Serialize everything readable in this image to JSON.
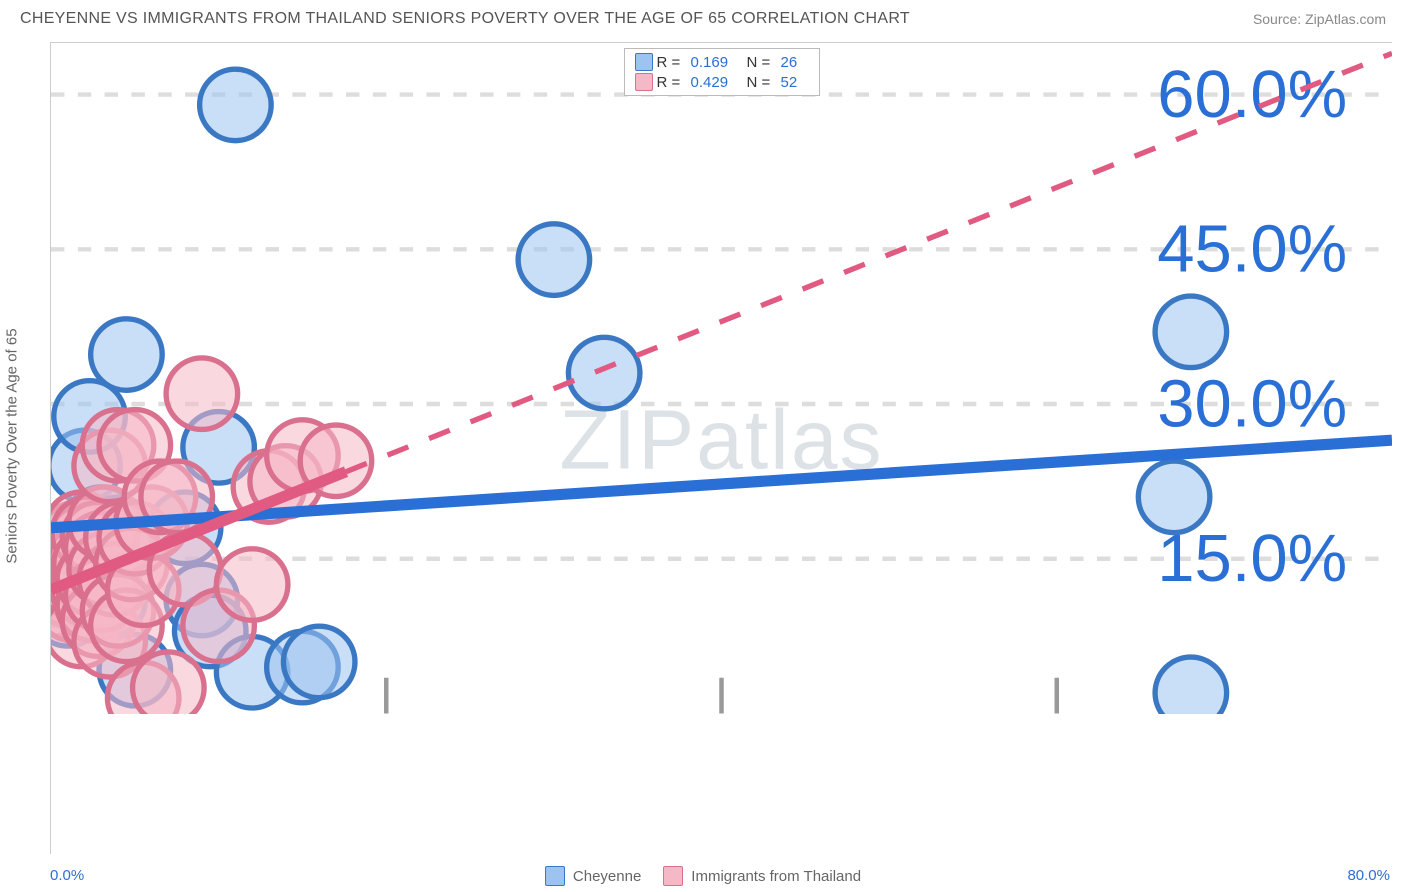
{
  "title": "CHEYENNE VS IMMIGRANTS FROM THAILAND SENIORS POVERTY OVER THE AGE OF 65 CORRELATION CHART",
  "source": "Source: ZipAtlas.com",
  "ylabel": "Seniors Poverty Over the Age of 65",
  "watermark_a": "ZIP",
  "watermark_b": "atlas",
  "chart": {
    "type": "scatter",
    "background_color": "#ffffff",
    "grid_color": "#dddddd",
    "axis_color": "#cccccc",
    "xlim": [
      0,
      80
    ],
    "ylim": [
      0,
      65
    ],
    "xticks": [
      0,
      20,
      40,
      60,
      80
    ],
    "yticks": [
      15,
      30,
      45,
      60
    ],
    "ytick_labels": [
      "15.0%",
      "30.0%",
      "45.0%",
      "60.0%"
    ],
    "x_origin_label": "0.0%",
    "x_max_label": "80.0%",
    "tick_font_color": "#2a6fd6",
    "tick_font_size": 15,
    "marker_radius": 8,
    "marker_opacity": 0.55,
    "watermark_color": "rgba(120,140,160,0.25)",
    "series": [
      {
        "name": "Cheyenne",
        "R": "0.169",
        "N": "26",
        "fill": "#9dc3f0",
        "stroke": "#3b78c4",
        "line_color": "#2a6fd6",
        "line_width": 2.5,
        "points": [
          [
            0.5,
            12.5
          ],
          [
            0.7,
            13.0
          ],
          [
            1.0,
            10.0
          ],
          [
            1.2,
            13.2
          ],
          [
            1.5,
            17.0
          ],
          [
            2.0,
            15.0
          ],
          [
            2.0,
            24.0
          ],
          [
            2.3,
            28.8
          ],
          [
            3.0,
            18.5
          ],
          [
            3.5,
            11.0
          ],
          [
            4.0,
            17.5
          ],
          [
            4.5,
            34.8
          ],
          [
            5.0,
            4.2
          ],
          [
            8.0,
            18.0
          ],
          [
            9.0,
            11.0
          ],
          [
            9.5,
            8.0
          ],
          [
            10.0,
            25.8
          ],
          [
            11.0,
            59.0
          ],
          [
            12.0,
            4.0
          ],
          [
            15.0,
            4.5
          ],
          [
            16.0,
            5.0
          ],
          [
            30.0,
            44.0
          ],
          [
            33.0,
            33.0
          ],
          [
            67.0,
            21.0
          ],
          [
            68.0,
            37.0
          ],
          [
            68.0,
            2.0
          ]
        ],
        "trend": {
          "x1": 0,
          "y1": 18.0,
          "x2": 80,
          "y2": 26.5,
          "solid_frac": 1.0
        }
      },
      {
        "name": "Immigrants from Thailand",
        "R": "0.429",
        "N": "52",
        "fill": "#f5b8c6",
        "stroke": "#d9708e",
        "line_color": "#e15a82",
        "line_width": 2.5,
        "points": [
          [
            0.3,
            12.0
          ],
          [
            0.4,
            13.0
          ],
          [
            0.5,
            11.0
          ],
          [
            0.6,
            12.8
          ],
          [
            0.8,
            14.0
          ],
          [
            1.0,
            12.0
          ],
          [
            1.0,
            15.0
          ],
          [
            1.1,
            16.5
          ],
          [
            1.2,
            13.5
          ],
          [
            1.3,
            10.5
          ],
          [
            1.4,
            15.5
          ],
          [
            1.5,
            17.0
          ],
          [
            1.6,
            12.5
          ],
          [
            1.8,
            18.0
          ],
          [
            1.8,
            8.0
          ],
          [
            2.0,
            16.8
          ],
          [
            2.0,
            15.0
          ],
          [
            2.2,
            17.5
          ],
          [
            2.2,
            12.0
          ],
          [
            2.3,
            14.5
          ],
          [
            2.5,
            10.5
          ],
          [
            2.5,
            13.0
          ],
          [
            2.8,
            17.0
          ],
          [
            2.8,
            9.0
          ],
          [
            3.0,
            16.0
          ],
          [
            3.0,
            11.5
          ],
          [
            3.2,
            14.0
          ],
          [
            3.2,
            18.5
          ],
          [
            3.5,
            24.0
          ],
          [
            3.5,
            7.0
          ],
          [
            3.8,
            13.0
          ],
          [
            4.0,
            26.0
          ],
          [
            4.0,
            10.0
          ],
          [
            4.2,
            17.0
          ],
          [
            4.5,
            8.5
          ],
          [
            4.8,
            14.5
          ],
          [
            5.0,
            17.0
          ],
          [
            5.0,
            26.0
          ],
          [
            5.5,
            12.0
          ],
          [
            5.5,
            1.5
          ],
          [
            6.0,
            18.5
          ],
          [
            6.5,
            21.0
          ],
          [
            7.0,
            2.5
          ],
          [
            7.5,
            21.0
          ],
          [
            8.0,
            14.0
          ],
          [
            9.0,
            31.0
          ],
          [
            10.0,
            8.5
          ],
          [
            12.0,
            12.5
          ],
          [
            13.0,
            22.0
          ],
          [
            14.0,
            22.5
          ],
          [
            15.0,
            25.0
          ],
          [
            17.0,
            24.5
          ]
        ],
        "trend": {
          "x1": 0,
          "y1": 12.0,
          "x2": 80,
          "y2": 64.0,
          "solid_frac": 0.22
        }
      }
    ]
  },
  "legend": {
    "items": [
      {
        "label": "Cheyenne",
        "fill": "#9dc3f0",
        "stroke": "#3b78c4"
      },
      {
        "label": "Immigrants from Thailand",
        "fill": "#f5b8c6",
        "stroke": "#d9708e"
      }
    ]
  },
  "statbox": {
    "rows": [
      {
        "fill": "#9dc3f0",
        "stroke": "#3b78c4",
        "R_lab": "R  =",
        "R": "0.169",
        "N_lab": "N  =",
        "N": "26"
      },
      {
        "fill": "#f5b8c6",
        "stroke": "#d9708e",
        "R_lab": "R  =",
        "R": "0.429",
        "N_lab": "N  =",
        "N": "52"
      }
    ]
  }
}
